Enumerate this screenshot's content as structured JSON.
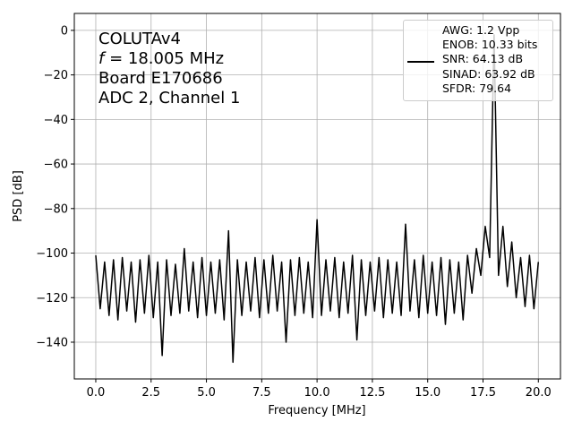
{
  "chart_data": {
    "type": "line",
    "annotations": [
      "COLUTAv4",
      "f = 18.005 MHz",
      "Board E170686",
      "ADC 2, Channel 1"
    ],
    "xlabel": "Frequency [MHz]",
    "ylabel": "PSD [dB]",
    "xlim": [
      -0.97,
      21.0
    ],
    "ylim": [
      -156.5,
      7.6
    ],
    "xticks": [
      {
        "value": 0,
        "label": "0.0"
      },
      2.5,
      {
        "value": 5,
        "label": "5.0"
      },
      7.5,
      {
        "value": 10,
        "label": "10.0"
      },
      12.5,
      {
        "value": 15,
        "label": "15.0"
      },
      17.5,
      {
        "value": 20,
        "label": "20.0"
      }
    ],
    "yticks": [
      0,
      {
        "value": -20,
        "label": "−20"
      },
      {
        "value": -40,
        "label": "−40"
      },
      {
        "value": -60,
        "label": "−60"
      },
      {
        "value": -80,
        "label": "−80"
      },
      {
        "value": -100,
        "label": "−100"
      },
      {
        "value": -120,
        "label": "−120"
      },
      {
        "value": -140,
        "label": "−140"
      }
    ],
    "grid": true,
    "legend": "upper right",
    "x": [
      0,
      0.2,
      0.4,
      0.6,
      0.8,
      1,
      1.2,
      1.4,
      1.6,
      1.8,
      2,
      2.2,
      2.4,
      2.6,
      2.8,
      3,
      3.2,
      3.4,
      3.6,
      3.8,
      4,
      4.2,
      4.4,
      4.6,
      4.8,
      5,
      5.2,
      5.4,
      5.6,
      5.8,
      6,
      6.2,
      6.4,
      6.6,
      6.8,
      7,
      7.2,
      7.4,
      7.6,
      7.8,
      8,
      8.2,
      8.4,
      8.6,
      8.8,
      9,
      9.2,
      9.4,
      9.6,
      9.8,
      10,
      10.2,
      10.4,
      10.6,
      10.8,
      11,
      11.2,
      11.4,
      11.6,
      11.8,
      12,
      12.2,
      12.4,
      12.6,
      12.8,
      13,
      13.2,
      13.4,
      13.6,
      13.8,
      14,
      14.2,
      14.4,
      14.6,
      14.8,
      15,
      15.2,
      15.4,
      15.6,
      15.8,
      16,
      16.2,
      16.4,
      16.6,
      16.8,
      17,
      17.2,
      17.4,
      17.6,
      17.8,
      18,
      18.2,
      18.4,
      18.6,
      18.8,
      19,
      19.2,
      19.4,
      19.6,
      19.8,
      20
    ],
    "series": [
      {
        "name": "AWG: 1.2 Vpp\nENOB: 10.33 bits\nSNR: 64.13 dB\nSINAD: 63.92 dB\nSFDR: 79.64",
        "color": "#000000",
        "values": [
          -101,
          -125,
          -104,
          -128,
          -103,
          -130,
          -102,
          -126,
          -104,
          -131,
          -103,
          -127,
          -101,
          -129,
          -104,
          -146,
          -103,
          -128,
          -105,
          -127,
          -98,
          -126,
          -104,
          -129,
          -102,
          -128,
          -104,
          -127,
          -103,
          -130,
          -90,
          -149,
          -103,
          -128,
          -104,
          -126,
          -102,
          -129,
          -103,
          -127,
          -101,
          -126,
          -104,
          -140,
          -103,
          -128,
          -102,
          -127,
          -104,
          -129,
          -85,
          -128,
          -103,
          -126,
          -102,
          -129,
          -104,
          -127,
          -101,
          -139,
          -103,
          -128,
          -104,
          -126,
          -102,
          -129,
          -103,
          -127,
          -104,
          -128,
          -87,
          -126,
          -103,
          -129,
          -101,
          -127,
          -104,
          -128,
          -102,
          -132,
          -103,
          -127,
          -104,
          -130,
          -101,
          -118,
          -98,
          -110,
          -88,
          -102,
          -2,
          -110,
          -88,
          -115,
          -95,
          -120,
          -102,
          -124,
          -101,
          -125,
          -104
        ]
      }
    ]
  }
}
